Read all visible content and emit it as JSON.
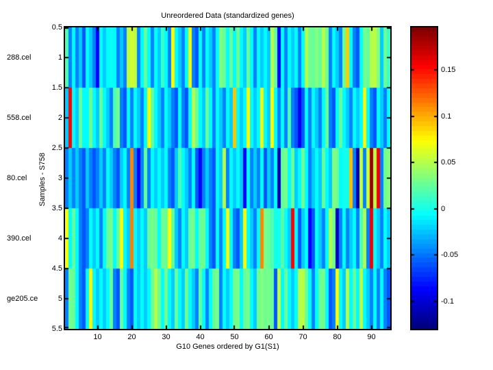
{
  "title": "Unreordered Data (standardized genes)",
  "xlabel": "G10 Genes ordered by G1(S1)",
  "ylabel": "Samples - S758",
  "sample_labels": [
    "288.cel",
    "558.cel",
    "80.cel",
    "390.cel",
    "ge205.ce"
  ],
  "y_tick_labels": [
    "0.5",
    "1",
    "1.5",
    "2",
    "2.5",
    "3",
    "3.5",
    "4",
    "4.5",
    "5",
    "5.5"
  ],
  "x_tick_labels": [
    "10",
    "20",
    "30",
    "40",
    "50",
    "60",
    "70",
    "80",
    "90"
  ],
  "colorbar": {
    "tick_values": [
      0.15,
      0.1,
      0.05,
      0,
      -0.05,
      -0.1
    ],
    "tick_labels": [
      "0.15",
      "0.1",
      "0.05",
      "0",
      "-0.05",
      "-0.1"
    ],
    "min": -0.13,
    "max": 0.196,
    "colormap": "jet",
    "steps": 64
  },
  "chart_data": {
    "type": "heatmap",
    "title": "Unreordered Data (standardized genes)",
    "xlabel": "G10 Genes ordered by G1(S1)",
    "ylabel": "Samples - S758",
    "colormap": "jet",
    "clim": [
      -0.13,
      0.196
    ],
    "x_range": [
      0.5,
      95.5
    ],
    "y_range": [
      0.5,
      5.5
    ],
    "x_ticks": [
      10,
      20,
      30,
      40,
      50,
      60,
      70,
      80,
      90
    ],
    "y_ticks": [
      0.5,
      1,
      1.5,
      2,
      2.5,
      3,
      3.5,
      4,
      4.5,
      5,
      5.5
    ],
    "rows": [
      "288.cel",
      "558.cel",
      "80.cel",
      "390.cel",
      "ge205.ce"
    ],
    "n_genes": 95,
    "values": [
      [
        0.017,
        -0.048,
        -0.008,
        -0.048,
        -0.024,
        -0.062,
        -0.008,
        -0.024,
        -0.048,
        -0.089,
        -0.008,
        -0.024,
        -0.008,
        -0.005,
        -0.008,
        -0.048,
        -0.024,
        -0.048,
        0.053,
        0.058,
        0.053,
        -0.048,
        -0.008,
        0.025,
        -0.008,
        -0.048,
        -0.008,
        -0.024,
        0.01,
        -0.008,
        -0.048,
        0.074,
        -0.008,
        -0.024,
        -0.048,
        -0.008,
        0.07,
        -0.048,
        -0.062,
        -0.008,
        -0.048,
        -0.008,
        -0.024,
        -0.048,
        -0.008,
        0.033,
        0.025,
        -0.008,
        0.025,
        -0.008,
        0.028,
        -0.008,
        -0.024,
        0.025,
        -0.008,
        -0.048,
        -0.008,
        -0.024,
        -0.008,
        -0.024,
        0.05,
        0.025,
        -0.089,
        -0.008,
        -0.048,
        -0.008,
        -0.024,
        -0.008,
        -0.048,
        -0.008,
        0.05,
        0.028,
        0.025,
        0.033,
        0.025,
        0.05,
        0.028,
        -0.048,
        -0.008,
        -0.024,
        -0.048,
        0.025,
        0.09,
        -0.008,
        -0.048,
        -0.062,
        -0.008,
        0.028,
        0.025,
        0.05,
        0.053,
        0.033,
        -0.024,
        0.025,
        0.012
      ],
      [
        -0.024,
        0.155,
        -0.008,
        -0.024,
        0.025,
        -0.008,
        -0.008,
        0.028,
        -0.008,
        -0.024,
        0.025,
        -0.008,
        -0.024,
        -0.048,
        0.017,
        0.028,
        -0.048,
        -0.062,
        -0.008,
        -0.048,
        -0.008,
        -0.024,
        -0.048,
        -0.008,
        0.072,
        0.025,
        -0.008,
        -0.024,
        -0.048,
        -0.008,
        -0.024,
        -0.048,
        -0.062,
        -0.008,
        -0.048,
        -0.062,
        -0.008,
        0.05,
        0.025,
        -0.008,
        -0.024,
        0.025,
        -0.008,
        -0.048,
        -0.008,
        -0.024,
        -0.048,
        -0.008,
        -0.024,
        0.092,
        -0.008,
        -0.024,
        -0.008,
        0.074,
        -0.008,
        -0.024,
        -0.008,
        0.07,
        -0.008,
        -0.024,
        0.074,
        -0.008,
        -0.048,
        -0.008,
        -0.048,
        0.017,
        -0.048,
        -0.062,
        -0.092,
        -0.062,
        -0.008,
        -0.048,
        -0.008,
        -0.024,
        -0.048,
        -0.008,
        0.025,
        -0.048,
        -0.062,
        -0.008,
        0.025,
        -0.008,
        -0.024,
        -0.048,
        -0.008,
        -0.024,
        -0.008,
        0.072,
        -0.008,
        -0.048,
        -0.062,
        -0.008,
        -0.024,
        -0.048,
        -0.008
      ],
      [
        -0.048,
        -0.024,
        -0.048,
        -0.024,
        -0.048,
        -0.062,
        -0.024,
        -0.048,
        -0.062,
        -0.048,
        -0.024,
        -0.048,
        -0.008,
        -0.024,
        -0.048,
        -0.062,
        -0.024,
        -0.008,
        -0.048,
        0.112,
        -0.048,
        -0.092,
        -0.048,
        0.025,
        -0.048,
        -0.008,
        -0.024,
        -0.008,
        -0.024,
        -0.008,
        -0.048,
        -0.062,
        -0.024,
        0.017,
        -0.008,
        -0.024,
        -0.048,
        -0.008,
        -0.062,
        -0.089,
        -0.048,
        -0.024,
        -0.048,
        -0.062,
        -0.008,
        -0.024,
        0.05,
        -0.048,
        -0.008,
        -0.024,
        -0.008,
        -0.024,
        -0.089,
        -0.008,
        -0.048,
        -0.024,
        -0.048,
        -0.008,
        -0.062,
        -0.024,
        -0.048,
        -0.008,
        -0.112,
        0.025,
        0.03,
        -0.008,
        0.025,
        -0.024,
        -0.008,
        0.028,
        -0.008,
        -0.048,
        -0.024,
        -0.008,
        -0.024,
        0.025,
        -0.008,
        -0.024,
        0.033,
        0.028,
        -0.008,
        -0.002,
        -0.002,
        0.095,
        -0.048,
        -0.115,
        0.053,
        -0.048,
        0.058,
        0.188,
        0.053,
        0.158,
        -0.048,
        0.028,
        0.033
      ],
      [
        0.072,
        -0.008,
        0.025,
        -0.008,
        -0.048,
        -0.062,
        -0.048,
        -0.008,
        -0.024,
        -0.008,
        -0.048,
        -0.008,
        0.025,
        0.03,
        -0.008,
        0.025,
        0.072,
        -0.008,
        -0.024,
        0.115,
        -0.008,
        -0.024,
        -0.008,
        -0.024,
        0.025,
        0.03,
        0.025,
        -0.008,
        0.028,
        0.025,
        0.074,
        0.025,
        -0.024,
        -0.048,
        -0.008,
        -0.024,
        0.025,
        0.03,
        -0.008,
        0.025,
        0.028,
        -0.008,
        -0.048,
        -0.062,
        -0.008,
        -0.048,
        -0.008,
        0.072,
        -0.008,
        -0.048,
        -0.062,
        -0.024,
        0.072,
        -0.008,
        -0.024,
        -0.048,
        -0.008,
        0.112,
        0.03,
        0.025,
        0.017,
        -0.002,
        -0.002,
        0.02,
        -0.005,
        -0.024,
        0.155,
        -0.008,
        -0.062,
        -0.024,
        -0.008,
        -0.089,
        -0.062,
        -0.008,
        -0.024,
        -0.048,
        -0.008,
        0.05,
        0.028,
        -0.11,
        -0.048,
        -0.008,
        -0.048,
        -0.024,
        -0.008,
        -0.048,
        0.017,
        0.048,
        -0.048,
        0.158,
        -0.008,
        -0.024,
        -0.048,
        -0.008,
        -0.024
      ],
      [
        -0.048,
        0.03,
        0.025,
        -0.008,
        -0.048,
        -0.062,
        -0.008,
        0.074,
        -0.008,
        -0.024,
        -0.008,
        -0.024,
        -0.008,
        0.025,
        -0.048,
        -0.062,
        0.025,
        -0.008,
        -0.048,
        -0.062,
        -0.008,
        -0.024,
        -0.008,
        -0.024,
        -0.008,
        0.025,
        0.05,
        0.028,
        -0.008,
        0.03,
        -0.008,
        -0.024,
        0.025,
        -0.008,
        -0.024,
        0.028,
        -0.008,
        -0.024,
        -0.048,
        0.025,
        -0.008,
        -0.048,
        -0.008,
        0.025,
        0.03,
        -0.048,
        -0.008,
        -0.024,
        -0.008,
        0.028,
        0.03,
        -0.008,
        0.025,
        0.03,
        -0.008,
        -0.024,
        0.028,
        0.033,
        0.028,
        0.03,
        0.025,
        -0.062,
        0.053,
        -0.008,
        0.025,
        -0.008,
        -0.024,
        -0.008,
        0.05,
        0.053,
        0.025,
        -0.008,
        -0.048,
        -0.008,
        0.025,
        0.03,
        -0.008,
        -0.062,
        -0.048,
        0.074,
        -0.008,
        -0.024,
        0.05,
        -0.008,
        0.025,
        -0.008,
        0.053,
        -0.008,
        -0.024,
        -0.048,
        -0.008,
        -0.048,
        -0.008,
        -0.048,
        -0.062
      ]
    ]
  }
}
